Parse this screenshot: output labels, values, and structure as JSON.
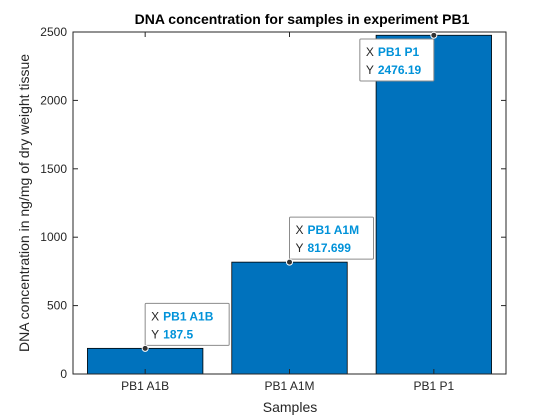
{
  "chart_data": {
    "type": "bar",
    "title": "DNA concentration for samples in experiment PB1",
    "xlabel": "Samples",
    "ylabel": "DNA concentration in ng/mg of dry weight tissue",
    "categories": [
      "PB1 A1B",
      "PB1 A1M",
      "PB1 P1"
    ],
    "values": [
      187.5,
      817.699,
      2476.19
    ],
    "ylim": [
      0,
      2500
    ],
    "yticks": [
      0,
      500,
      1000,
      1500,
      2000,
      2500
    ],
    "grid": false,
    "bar_color": "#0072BD",
    "datatips": [
      {
        "x_prefix": "X",
        "x_value": "PB1 A1B",
        "y_prefix": "Y",
        "y_value": "187.5"
      },
      {
        "x_prefix": "X",
        "x_value": "PB1 A1M",
        "y_prefix": "Y",
        "y_value": "817.699"
      },
      {
        "x_prefix": "X",
        "x_value": "PB1 P1",
        "y_prefix": "Y",
        "y_value": "2476.19"
      }
    ],
    "datatip_value_color": "#0092D9"
  }
}
